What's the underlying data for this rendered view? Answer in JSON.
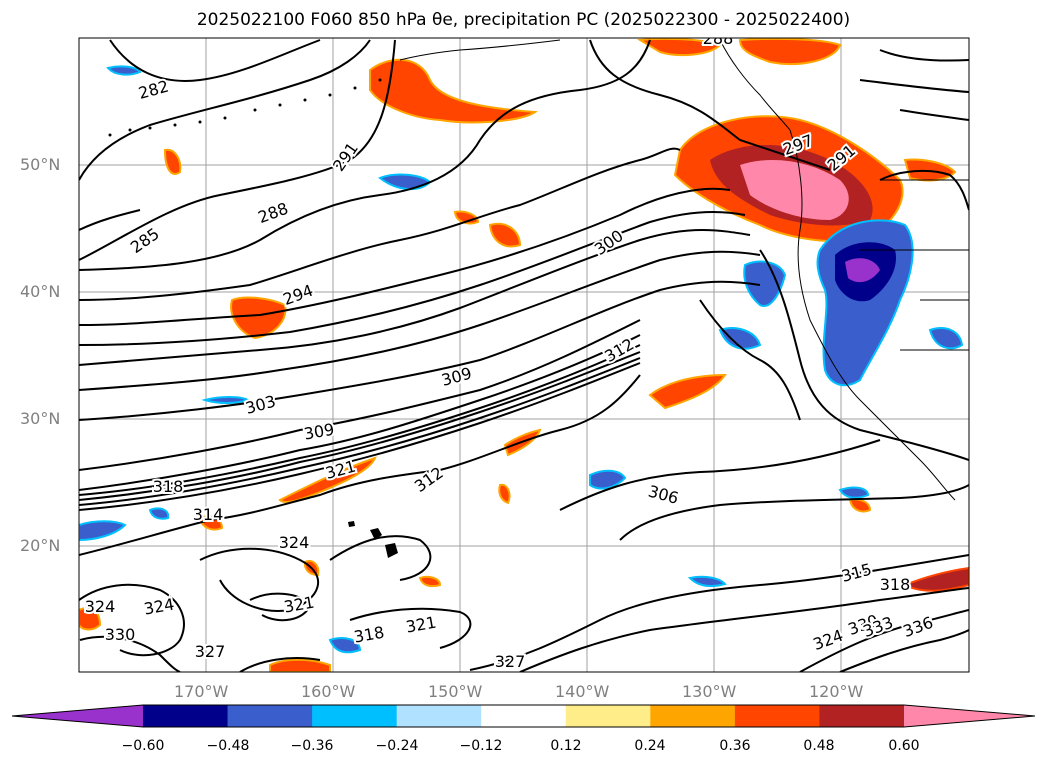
{
  "title": "2025022100 F060 850 hPa θe, precipitation PC (2025022300 - 2025022400)",
  "map": {
    "lat_labels": [
      "50°N",
      "40°N",
      "30°N",
      "20°N"
    ],
    "lon_labels": [
      "170°W",
      "160°W",
      "150°W",
      "140°W",
      "130°W",
      "120°W"
    ],
    "contour_labels": [
      "282",
      "291",
      "288",
      "285",
      "294",
      "300",
      "297",
      "291",
      "309",
      "303",
      "309",
      "312",
      "306",
      "318",
      "321",
      "312",
      "314",
      "324",
      "327",
      "321",
      "324",
      "318",
      "321",
      "324",
      "330",
      "327",
      "315",
      "318",
      "324",
      "330",
      "333",
      "336",
      "288"
    ],
    "colors": {
      "contour": "#000000",
      "grid": "#a0a0a0",
      "coast": "#000000"
    }
  },
  "colorbar": {
    "ticks": [
      "−0.60",
      "−0.48",
      "−0.36",
      "−0.24",
      "−0.12",
      "0.12",
      "0.24",
      "0.36",
      "0.48",
      "0.60"
    ],
    "colors": [
      "#9932cc",
      "#00008b",
      "#3a5fcd",
      "#00bfff",
      "#b0e2ff",
      "#ffffff",
      "#ffed8a",
      "#ffa500",
      "#ff4500",
      "#b22222",
      "#ff88aa"
    ]
  }
}
